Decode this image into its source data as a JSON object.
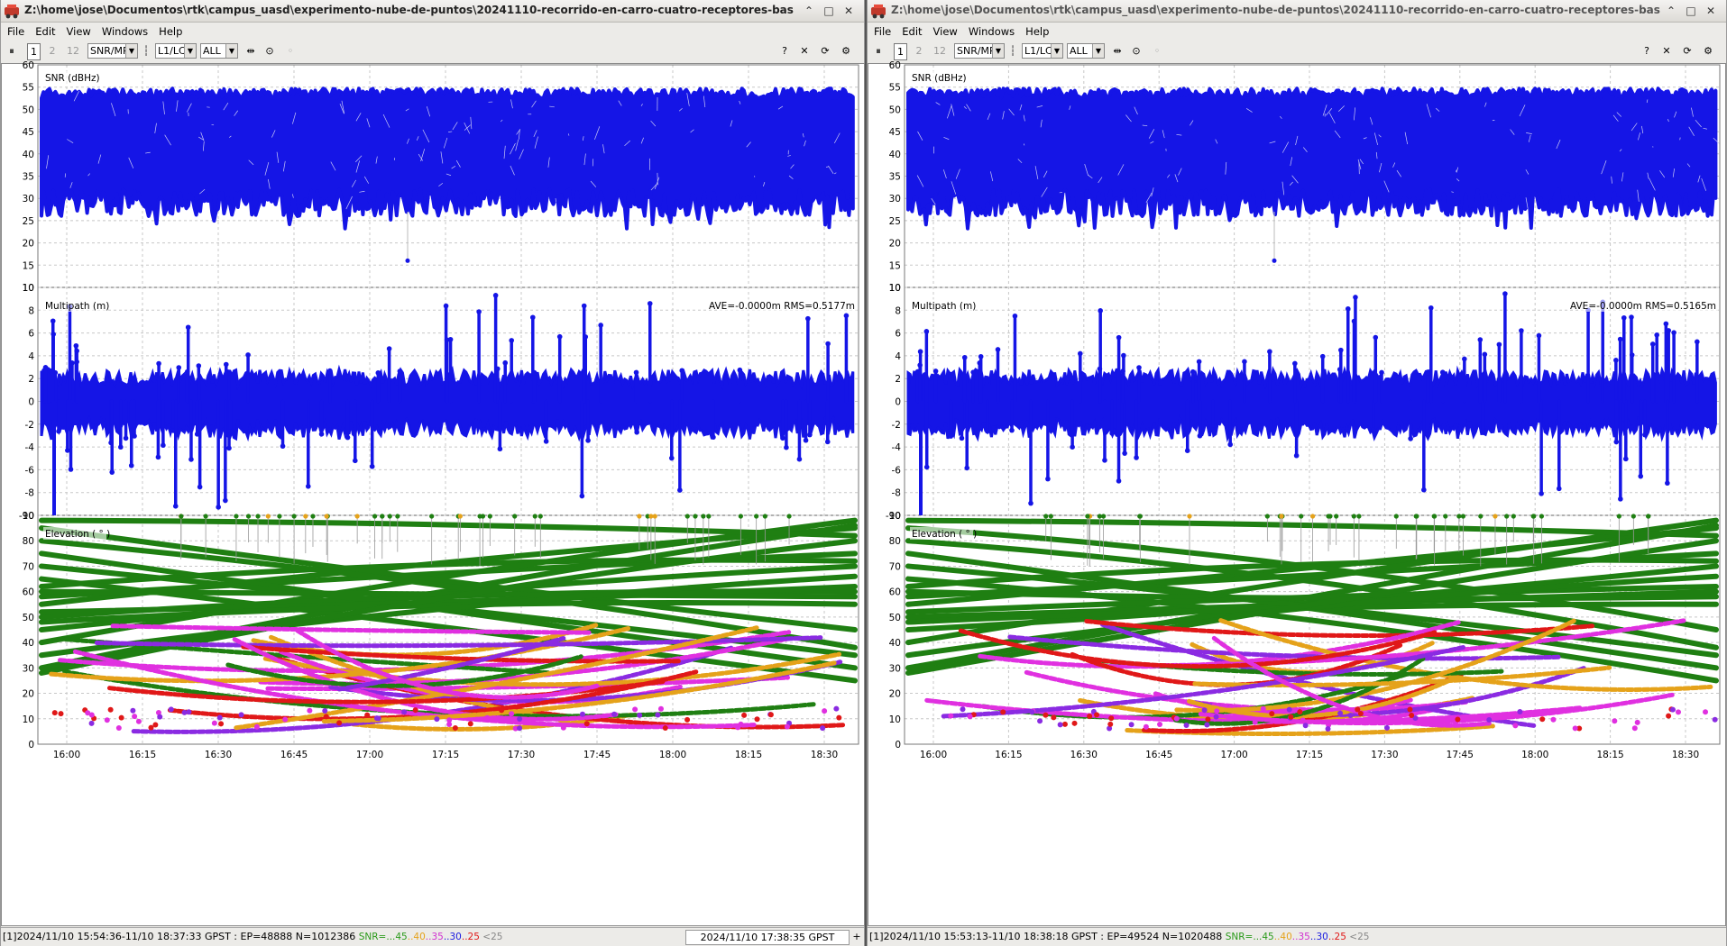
{
  "colors": {
    "snr_mp": "#1515e6",
    "elev_green": "#1f7f12",
    "elev_orange": "#e5a21a",
    "elev_magenta": "#e030e0",
    "elev_purple": "#8a2be2",
    "elev_red": "#e01818",
    "grid": "#c8c8c8"
  },
  "menu": [
    "File",
    "Edit",
    "View",
    "Windows",
    "Help"
  ],
  "windows": [
    {
      "title": "Z:\\home\\jose\\Documentos\\rtk\\campus_uasd\\experimento-nube-de-puntos\\20241110-recorrido-en-carro-cuatro-receptores-bas",
      "toolbar": {
        "n1": "1",
        "n2": "2",
        "n3": "12",
        "plot_type": "SNR/MP",
        "freq": "L1/LC",
        "sat": "ALL"
      },
      "snr_label": "SNR (dBHz)",
      "mp_label": "Multipath (m)",
      "mp_stats": "AVE=-0.0000m RMS=0.5177m",
      "el_label": "Elevation ( ° )",
      "status": {
        "prefix": "[1]2024/11/10 15:54:36-11/10 18:37:33 GPST : EP=48888 N=1012386",
        "legend_label": "SNR=",
        "legend": [
          {
            "t": "...45",
            "c": "#2a9a1a"
          },
          {
            "t": "..40",
            "c": "#e5a21a"
          },
          {
            "t": "..35",
            "c": "#d030d0"
          },
          {
            "t": "..30",
            "c": "#1a1ae0"
          },
          {
            "t": "..25",
            "c": "#e01818"
          },
          {
            "t": "<25",
            "c": "#888888"
          }
        ],
        "time": "2024/11/10 17:38:35 GPST"
      }
    },
    {
      "title": "Z:\\home\\jose\\Documentos\\rtk\\campus_uasd\\experimento-nube-de-puntos\\20241110-recorrido-en-carro-cuatro-receptores-bas",
      "toolbar": {
        "n1": "1",
        "n2": "2",
        "n3": "12",
        "plot_type": "SNR/MP",
        "freq": "L1/LC",
        "sat": "ALL"
      },
      "snr_label": "SNR (dBHz)",
      "mp_label": "Multipath (m)",
      "mp_stats": "AVE=-0.0000m RMS=0.5165m",
      "el_label": "Elevation ( ° )",
      "status": {
        "prefix": "[1]2024/11/10 15:53:13-11/10 18:38:18 GPST : EP=49524 N=1020488",
        "legend_label": "SNR=",
        "legend": [
          {
            "t": "...45",
            "c": "#2a9a1a"
          },
          {
            "t": "..40",
            "c": "#e5a21a"
          },
          {
            "t": "..35",
            "c": "#d030d0"
          },
          {
            "t": "..30",
            "c": "#1a1ae0"
          },
          {
            "t": "..25",
            "c": "#e01818"
          },
          {
            "t": "<25",
            "c": "#888888"
          }
        ],
        "time": ""
      }
    }
  ],
  "axes": {
    "snr": {
      "ylim": [
        10,
        60
      ],
      "ticks": [
        10,
        15,
        20,
        25,
        30,
        35,
        40,
        45,
        50,
        55,
        60
      ]
    },
    "mp": {
      "ylim": [
        -10,
        10
      ],
      "ticks": [
        -10,
        -8,
        -6,
        -4,
        -2,
        0,
        2,
        4,
        6,
        8,
        10
      ]
    },
    "el": {
      "ylim": [
        0,
        90
      ],
      "ticks": [
        0,
        10,
        20,
        30,
        40,
        50,
        60,
        70,
        80,
        90
      ]
    },
    "time_ticks": [
      "16:00",
      "16:15",
      "16:30",
      "16:45",
      "17:00",
      "17:15",
      "17:30",
      "17:45",
      "18:00",
      "18:15",
      "18:30"
    ]
  }
}
